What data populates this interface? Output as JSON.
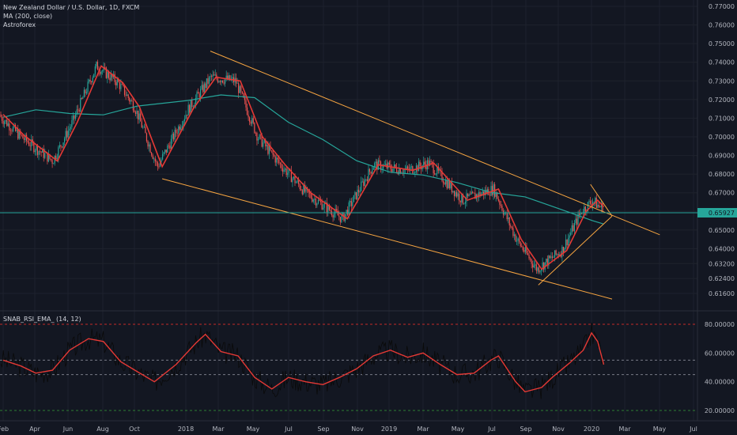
{
  "legend": {
    "symbol": "New Zealand Dollar / U.S. Dollar, 1D, FXCM",
    "ma": "MA (200, close)",
    "script": "Astroforex",
    "rsi": "SNAB_RSI_EMA_ (14, 12)"
  },
  "colors": {
    "background": "#131722",
    "grid": "#1e222d",
    "candle_up": "#26a69a",
    "candle_down": "#ef5350",
    "ma200": "#26a69a",
    "ema": "#e53935",
    "channel": "#f7a541",
    "rsi_line": "#e53935",
    "rsi_raw": "#000000",
    "level_80": "#c62828",
    "level_20": "#2e7d32",
    "current_price": "#26a69a"
  },
  "chart_data": [
    {
      "type": "candlestick",
      "title": "New Zealand Dollar / U.S. Dollar, 1D, FXCM",
      "x_tick_labels": [
        "Feb",
        "Apr",
        "Jun",
        "Aug",
        "Oct",
        "2018",
        "Mar",
        "May",
        "Jul",
        "Sep",
        "Nov",
        "2019",
        "Mar",
        "May",
        "Jul",
        "Sep",
        "Nov",
        "2020",
        "Mar",
        "May",
        "Jul"
      ],
      "y_tick_labels": [
        "0.77000",
        "0.76000",
        "0.75000",
        "0.74000",
        "0.73000",
        "0.72000",
        "0.71000",
        "0.70000",
        "0.69000",
        "0.68000",
        "0.67000",
        "0.66000",
        "0.65000",
        "0.64000",
        "0.63200",
        "0.62400",
        "0.61600"
      ],
      "ylim": [
        0.609,
        0.771
      ],
      "last_price": "0.65927",
      "series": [
        {
          "name": "MA (200, close)",
          "points": [
            [
              "2017-02-01",
              0.7105
            ],
            [
              "2017-04-01",
              0.7145
            ],
            [
              "2017-06-01",
              0.7125
            ],
            [
              "2017-08-01",
              0.7118
            ],
            [
              "2017-10-01",
              0.7165
            ],
            [
              "2018-01-01",
              0.7195
            ],
            [
              "2018-03-01",
              0.7225
            ],
            [
              "2018-05-01",
              0.721
            ],
            [
              "2018-07-01",
              0.7078
            ],
            [
              "2018-09-01",
              0.6985
            ],
            [
              "2018-11-01",
              0.6872
            ],
            [
              "2019-01-01",
              0.681
            ],
            [
              "2019-03-01",
              0.6795
            ],
            [
              "2019-05-01",
              0.6755
            ],
            [
              "2019-07-01",
              0.6702
            ],
            [
              "2019-09-01",
              0.6678
            ],
            [
              "2019-11-01",
              0.6615
            ],
            [
              "2020-01-01",
              0.655
            ],
            [
              "2020-01-21",
              0.6532
            ]
          ]
        },
        {
          "name": "EMA",
          "points": [
            [
              "2017-02-01",
              0.712
            ],
            [
              "2017-03-10",
              0.701
            ],
            [
              "2017-05-10",
              0.687
            ],
            [
              "2017-06-15",
              0.708
            ],
            [
              "2017-07-28",
              0.738
            ],
            [
              "2017-09-05",
              0.729
            ],
            [
              "2017-10-05",
              0.716
            ],
            [
              "2017-11-15",
              0.684
            ],
            [
              "2018-01-10",
              0.715
            ],
            [
              "2018-02-20",
              0.732
            ],
            [
              "2018-04-05",
              0.73
            ],
            [
              "2018-05-15",
              0.7
            ],
            [
              "2018-06-25",
              0.685
            ],
            [
              "2018-08-10",
              0.67
            ],
            [
              "2018-10-15",
              0.656
            ],
            [
              "2018-12-10",
              0.685
            ],
            [
              "2019-02-10",
              0.682
            ],
            [
              "2019-03-20",
              0.686
            ],
            [
              "2019-05-20",
              0.666
            ],
            [
              "2019-07-15",
              0.672
            ],
            [
              "2019-08-25",
              0.645
            ],
            [
              "2019-10-01",
              0.629
            ],
            [
              "2019-11-15",
              0.639
            ],
            [
              "2019-12-20",
              0.66
            ],
            [
              "2020-01-10",
              0.666
            ],
            [
              "2020-01-21",
              0.6625
            ]
          ]
        },
        {
          "name": "Upper channel",
          "points": [
            [
              "2018-02-10",
              0.746
            ],
            [
              "2020-05-01",
              0.6475
            ]
          ]
        },
        {
          "name": "Lower channel",
          "points": [
            [
              "2017-11-15",
              0.6775
            ],
            [
              "2020-02-05",
              0.613
            ]
          ]
        },
        {
          "name": "Triangle top",
          "points": [
            [
              "2019-12-28",
              0.6745
            ],
            [
              "2020-02-05",
              0.6575
            ]
          ]
        },
        {
          "name": "Triangle bottom",
          "points": [
            [
              "2019-09-25",
              0.6205
            ],
            [
              "2020-02-05",
              0.6575
            ]
          ]
        }
      ]
    },
    {
      "type": "line",
      "title": "SNAB_RSI_EMA_ (14, 12)",
      "y_tick_labels": [
        "80.00000",
        "60.00000",
        "40.00000",
        "20.00000"
      ],
      "ylim": [
        13,
        85
      ],
      "levels": [
        80,
        55,
        45,
        20
      ],
      "series": [
        {
          "name": "EMA",
          "points": [
            [
              "2017-02-01",
              55
            ],
            [
              "2017-03-05",
              51
            ],
            [
              "2017-04-01",
              46
            ],
            [
              "2017-05-01",
              48
            ],
            [
              "2017-06-01",
              62
            ],
            [
              "2017-07-05",
              70
            ],
            [
              "2017-08-01",
              68
            ],
            [
              "2017-09-01",
              54
            ],
            [
              "2017-10-01",
              47
            ],
            [
              "2017-11-01",
              40
            ],
            [
              "2017-12-10",
              52
            ],
            [
              "2018-01-15",
              67
            ],
            [
              "2018-02-01",
              73
            ],
            [
              "2018-03-01",
              61
            ],
            [
              "2018-04-01",
              58
            ],
            [
              "2018-05-01",
              43
            ],
            [
              "2018-06-01",
              35
            ],
            [
              "2018-07-01",
              43
            ],
            [
              "2018-08-01",
              40
            ],
            [
              "2018-09-01",
              38
            ],
            [
              "2018-10-01",
              43
            ],
            [
              "2018-11-01",
              49
            ],
            [
              "2018-12-01",
              58
            ],
            [
              "2019-01-01",
              62
            ],
            [
              "2019-02-01",
              57
            ],
            [
              "2019-03-01",
              60
            ],
            [
              "2019-04-01",
              52
            ],
            [
              "2019-05-01",
              45
            ],
            [
              "2019-06-01",
              46
            ],
            [
              "2019-07-01",
              55
            ],
            [
              "2019-07-15",
              58
            ],
            [
              "2019-08-15",
              40
            ],
            [
              "2019-09-01",
              33
            ],
            [
              "2019-10-01",
              36
            ],
            [
              "2019-10-20",
              43
            ],
            [
              "2019-11-20",
              53
            ],
            [
              "2019-12-15",
              62
            ],
            [
              "2019-12-30",
              74
            ],
            [
              "2020-01-10",
              68
            ],
            [
              "2020-01-21",
              52
            ]
          ]
        }
      ]
    }
  ]
}
